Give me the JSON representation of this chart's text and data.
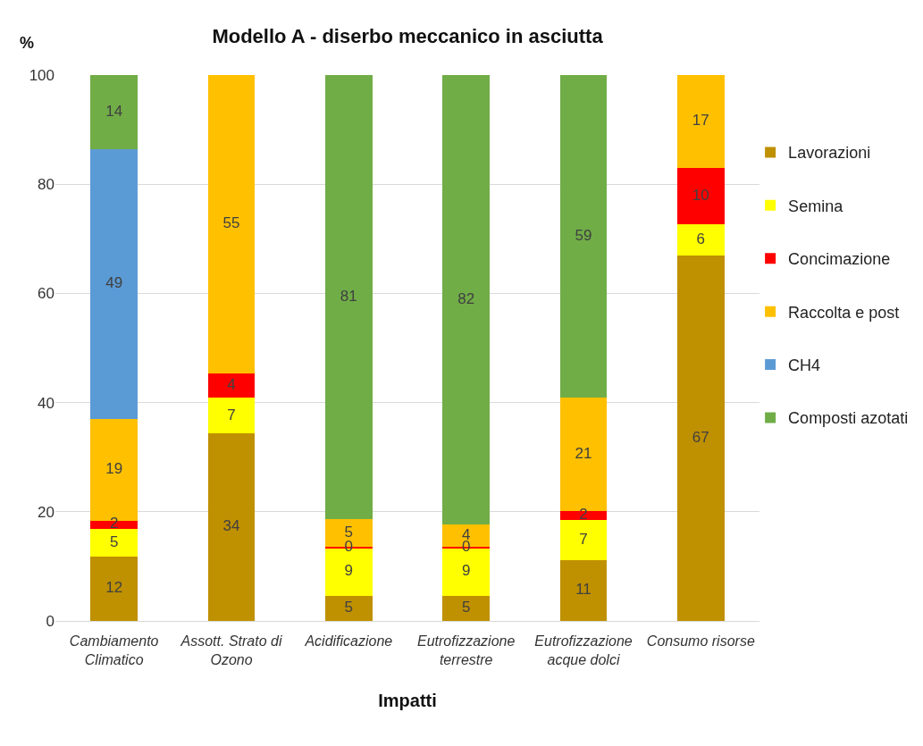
{
  "chart_data": {
    "type": "bar",
    "stacked": true,
    "title": "Modello A - diserbo meccanico in asciutta",
    "xlabel": "Impatti",
    "ylabel": "%",
    "categories": [
      "Cambiamento Climatico",
      "Assott. Strato di Ozono",
      "Acidificazione",
      "Eutrofizzazione terrestre",
      "Eutrofizzazione acque dolci",
      "Consumo risorse"
    ],
    "ylim": [
      0,
      100
    ],
    "yticks": [
      0,
      20,
      40,
      60,
      80,
      100
    ],
    "grid": "y",
    "legend": "right",
    "series": [
      {
        "name": "Lavorazioni",
        "color": "#bf9000",
        "values": [
          11.8,
          34.3,
          4.6,
          4.6,
          11.2,
          67.0
        ],
        "value_labels": [
          "12",
          "34",
          "5",
          "5",
          "11",
          "67"
        ]
      },
      {
        "name": "Semina",
        "color": "#ffff00",
        "values": [
          5.1,
          6.6,
          8.8,
          8.8,
          7.3,
          5.6
        ],
        "value_labels": [
          "5",
          "7",
          "9",
          "9",
          "7",
          "6"
        ]
      },
      {
        "name": "Concimazione",
        "color": "#ff0000",
        "values": [
          1.5,
          4.4,
          0.2,
          0.2,
          1.6,
          10.4
        ],
        "value_labels": [
          "2",
          "4",
          "0",
          "0",
          "2",
          "10"
        ]
      },
      {
        "name": "Raccolta e post",
        "color": "#ffc000",
        "values": [
          18.6,
          54.7,
          5.0,
          4.0,
          20.8,
          17.0
        ],
        "value_labels": [
          "19",
          "55",
          "5",
          "4",
          "21",
          "17"
        ]
      },
      {
        "name": "CH4",
        "color": "#5b9bd5",
        "values": [
          49.4,
          null,
          null,
          null,
          null,
          null
        ],
        "value_labels": [
          "49",
          null,
          null,
          null,
          null,
          null
        ]
      },
      {
        "name": "Composti azotati",
        "color": "#70ad47",
        "values": [
          13.6,
          null,
          81.4,
          82.4,
          59.1,
          null
        ],
        "value_labels": [
          "14",
          null,
          "81",
          "82",
          "59",
          null
        ]
      }
    ]
  }
}
